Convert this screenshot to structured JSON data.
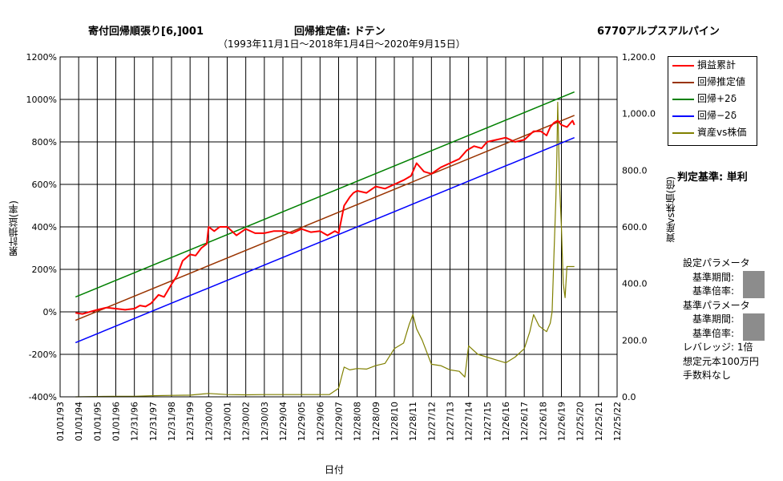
{
  "header": {
    "strategy_title": "寄付回帰順張り[6,]001",
    "regression_title": "回帰推定値: ドテン",
    "stock_title": "6770アルプスアルパイン",
    "period": "（1993年11月1日～2018年1月4日～2020年9月15日）"
  },
  "judge_label": "判定基準: 単利",
  "params": {
    "set_params": "設定パラメータ",
    "base_period_1": "基準期間:",
    "base_mult_1": "基準倍率:",
    "base_params": "基準パラメータ",
    "base_period_2": "基準期間:",
    "base_mult_2": "基準倍率:",
    "leverage": "レバレッジ: 1倍",
    "capital": "想定元本100万円",
    "fee": "手数料なし"
  },
  "chart_data": {
    "type": "line",
    "xlabel": "日付",
    "ylabel_left": "累計損益(率)",
    "ylabel_right": "資産vs株価(倍)",
    "ylim_left": [
      -400,
      1200
    ],
    "ylim_right": [
      0,
      1200
    ],
    "yticks_left": [
      "-400%",
      "-200%",
      "0%",
      "200%",
      "400%",
      "600%",
      "800%",
      "1000%",
      "1200%"
    ],
    "yticks_right": [
      "0.0",
      "200.0",
      "400.0",
      "600.0",
      "800.0",
      "1,000.0",
      "1,200.0"
    ],
    "x_tick_labels": [
      "01/01/93",
      "01/01/94",
      "01/01/95",
      "01/01/96",
      "12/31/96",
      "12/31/97",
      "12/31/98",
      "12/31/99",
      "12/30/00",
      "12/30/01",
      "12/30/02",
      "12/30/03",
      "12/29/04",
      "12/29/05",
      "12/29/06",
      "12/29/07",
      "12/28/08",
      "12/28/09",
      "12/28/10",
      "12/28/11",
      "12/27/12",
      "12/27/13",
      "12/27/14",
      "12/27/15",
      "12/26/16",
      "12/26/17",
      "12/26/18",
      "12/26/19",
      "12/25/20",
      "12/25/21",
      "12/25/22"
    ],
    "grid": true,
    "legend_position": "right",
    "legend": [
      {
        "name": "損益累計",
        "color": "#ff0000"
      },
      {
        "name": "回帰推定値",
        "color": "#993300"
      },
      {
        "name": "回帰+2δ",
        "color": "#008000"
      },
      {
        "name": "回帰−2δ",
        "color": "#0000ff"
      },
      {
        "name": "資産vs株価",
        "color": "#808000"
      }
    ],
    "series": [
      {
        "name": "損益累計",
        "axis": "left",
        "x": [
          1993.83,
          1994.2,
          1994.6,
          1995.0,
          1995.5,
          1996.0,
          1996.5,
          1997.0,
          1997.3,
          1997.6,
          1997.9,
          1998.3,
          1998.6,
          1999.0,
          1999.3,
          1999.6,
          2000.0,
          2000.3,
          2000.6,
          2000.9,
          2001.0,
          2001.3,
          2001.6,
          2002.0,
          2002.5,
          2003.0,
          2003.5,
          2004.0,
          2004.5,
          2005.0,
          2005.5,
          2006.0,
          2006.5,
          2007.0,
          2007.4,
          2007.8,
          2008.0,
          2008.3,
          2008.6,
          2008.8,
          2009.0,
          2009.5,
          2010.0,
          2010.5,
          2011.0,
          2011.5,
          2011.9,
          2012.2,
          2012.6,
          2013.0,
          2013.5,
          2014.0,
          2014.5,
          2014.9,
          2015.3,
          2015.7,
          2016.0,
          2016.5,
          2017.0,
          2017.5,
          2018.0,
          2018.5,
          2018.9,
          2019.2,
          2019.4,
          2019.6,
          2019.8,
          2020.0,
          2020.3,
          2020.6,
          2020.7
        ],
        "y": [
          -5,
          -10,
          0,
          10,
          20,
          15,
          10,
          15,
          30,
          25,
          40,
          80,
          70,
          130,
          170,
          240,
          270,
          265,
          300,
          320,
          400,
          380,
          400,
          400,
          360,
          390,
          370,
          370,
          380,
          380,
          370,
          390,
          375,
          380,
          360,
          380,
          370,
          500,
          540,
          560,
          570,
          560,
          590,
          580,
          600,
          620,
          640,
          700,
          660,
          650,
          680,
          700,
          720,
          760,
          780,
          770,
          800,
          810,
          820,
          800,
          810,
          850,
          850,
          830,
          870,
          890,
          900,
          880,
          870,
          900,
          880
        ]
      },
      {
        "name": "回帰推定値",
        "axis": "left",
        "x": [
          1993.83,
          2020.7
        ],
        "y": [
          -40,
          925
        ]
      },
      {
        "name": "回帰+2δ",
        "axis": "left",
        "x": [
          1993.83,
          2020.7
        ],
        "y": [
          70,
          1035
        ]
      },
      {
        "name": "回帰−2δ",
        "axis": "left",
        "x": [
          1993.83,
          2020.7
        ],
        "y": [
          -145,
          820
        ]
      },
      {
        "name": "資産vs株価",
        "axis": "right",
        "x": [
          1993.83,
          1995.0,
          1996.0,
          1997.0,
          1998.0,
          1999.0,
          2000.0,
          2001.0,
          2002.0,
          2003.0,
          2004.0,
          2005.0,
          2006.0,
          2007.0,
          2007.5,
          2008.0,
          2008.3,
          2008.6,
          2009.0,
          2009.5,
          2010.0,
          2010.5,
          2011.0,
          2011.5,
          2011.8,
          2012.0,
          2012.2,
          2012.5,
          2013.0,
          2013.5,
          2014.0,
          2014.5,
          2014.8,
          2015.0,
          2015.5,
          2016.0,
          2016.5,
          2017.0,
          2017.5,
          2018.0,
          2018.3,
          2018.5,
          2018.8,
          2019.0,
          2019.2,
          2019.4,
          2019.5,
          2019.6,
          2019.7,
          2019.75,
          2019.8,
          2019.85,
          2019.9,
          2020.0,
          2020.1,
          2020.2,
          2020.3,
          2020.5,
          2020.7
        ],
        "y": [
          0,
          1,
          2,
          2,
          4,
          5,
          6,
          12,
          8,
          7,
          8,
          8,
          8,
          8,
          8,
          30,
          105,
          95,
          100,
          98,
          110,
          118,
          170,
          190,
          255,
          290,
          240,
          200,
          115,
          110,
          95,
          90,
          70,
          180,
          150,
          140,
          130,
          120,
          140,
          170,
          230,
          290,
          250,
          240,
          230,
          260,
          300,
          500,
          700,
          830,
          1040,
          900,
          750,
          600,
          400,
          350,
          460,
          460,
          460
        ]
      }
    ]
  }
}
